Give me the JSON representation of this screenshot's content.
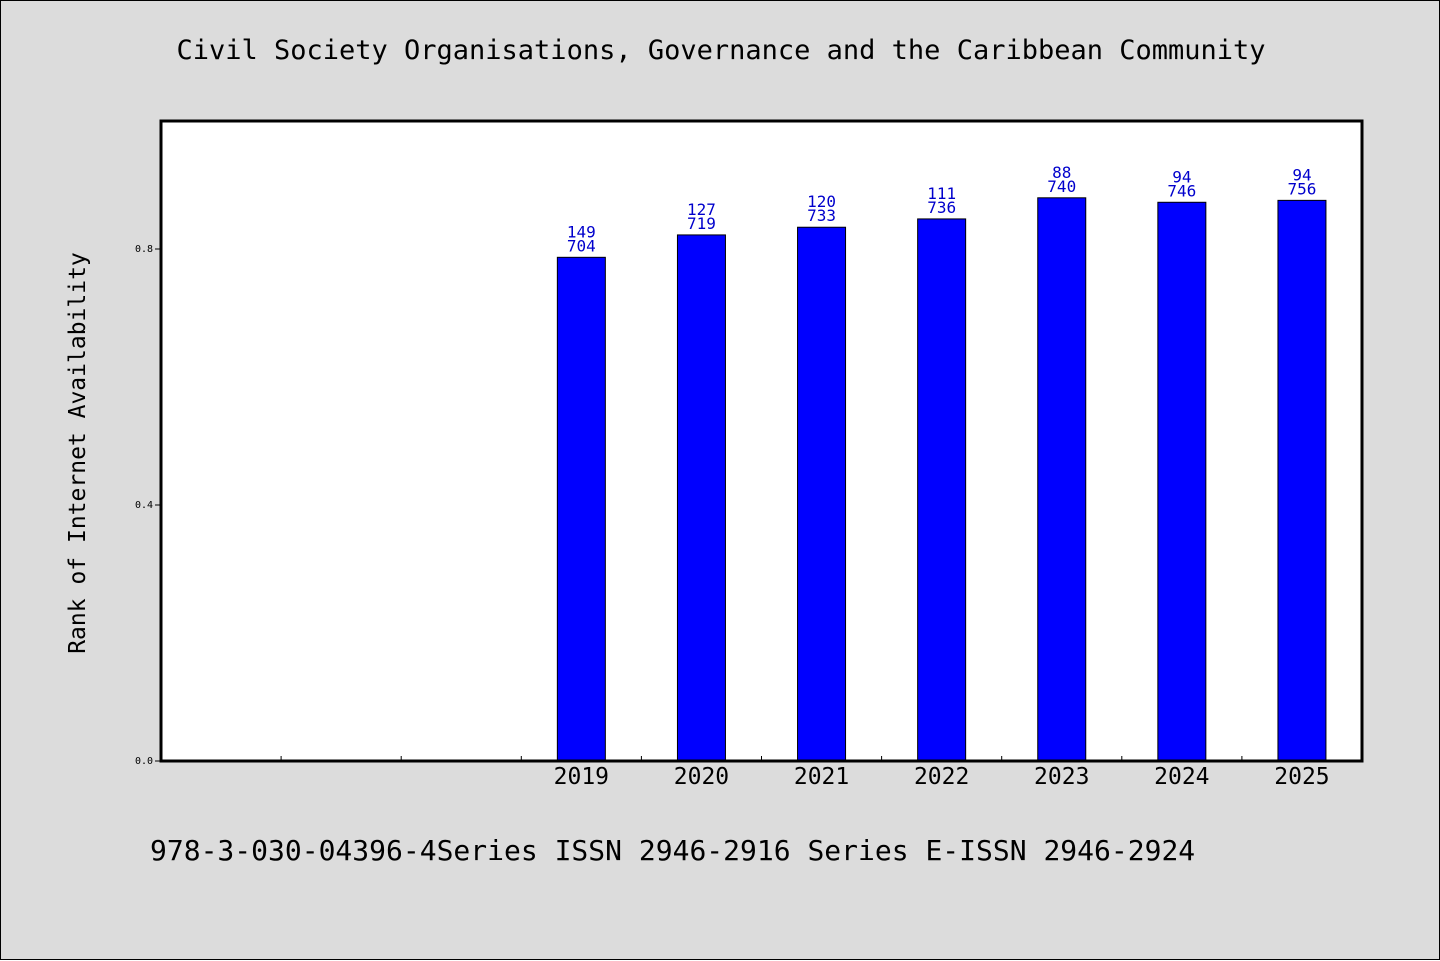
{
  "chart_data": {
    "type": "bar",
    "title": "Civil Society Organisations, Governance and the Caribbean Community",
    "ylabel": "Rank of Internet Availability",
    "xlabel": "",
    "categories": [
      "",
      "",
      "",
      "2019",
      "2020",
      "2021",
      "2022",
      "2023",
      "2024",
      "2025"
    ],
    "values": [
      null,
      null,
      null,
      0.787,
      0.822,
      0.834,
      0.847,
      0.88,
      0.873,
      0.876
    ],
    "bar_labels": [
      null,
      null,
      null,
      [
        "149",
        "704"
      ],
      [
        "127",
        "719"
      ],
      [
        "120",
        "733"
      ],
      [
        "111",
        "736"
      ],
      [
        "88",
        "740"
      ],
      [
        "94",
        "746"
      ],
      [
        "94",
        "756"
      ]
    ],
    "ylim": [
      0,
      1.0
    ],
    "yticks": [
      0.0,
      0.4,
      0.8
    ],
    "ytick_labels": [
      "0.0",
      "0.4",
      "0.8"
    ],
    "grid": false,
    "legend": "none",
    "bar_color": "#0000ff",
    "label_color": "#0000cc",
    "footer": "978-3-030-04396-4Series ISSN 2946-2916 Series E-ISSN 2946-2924"
  }
}
